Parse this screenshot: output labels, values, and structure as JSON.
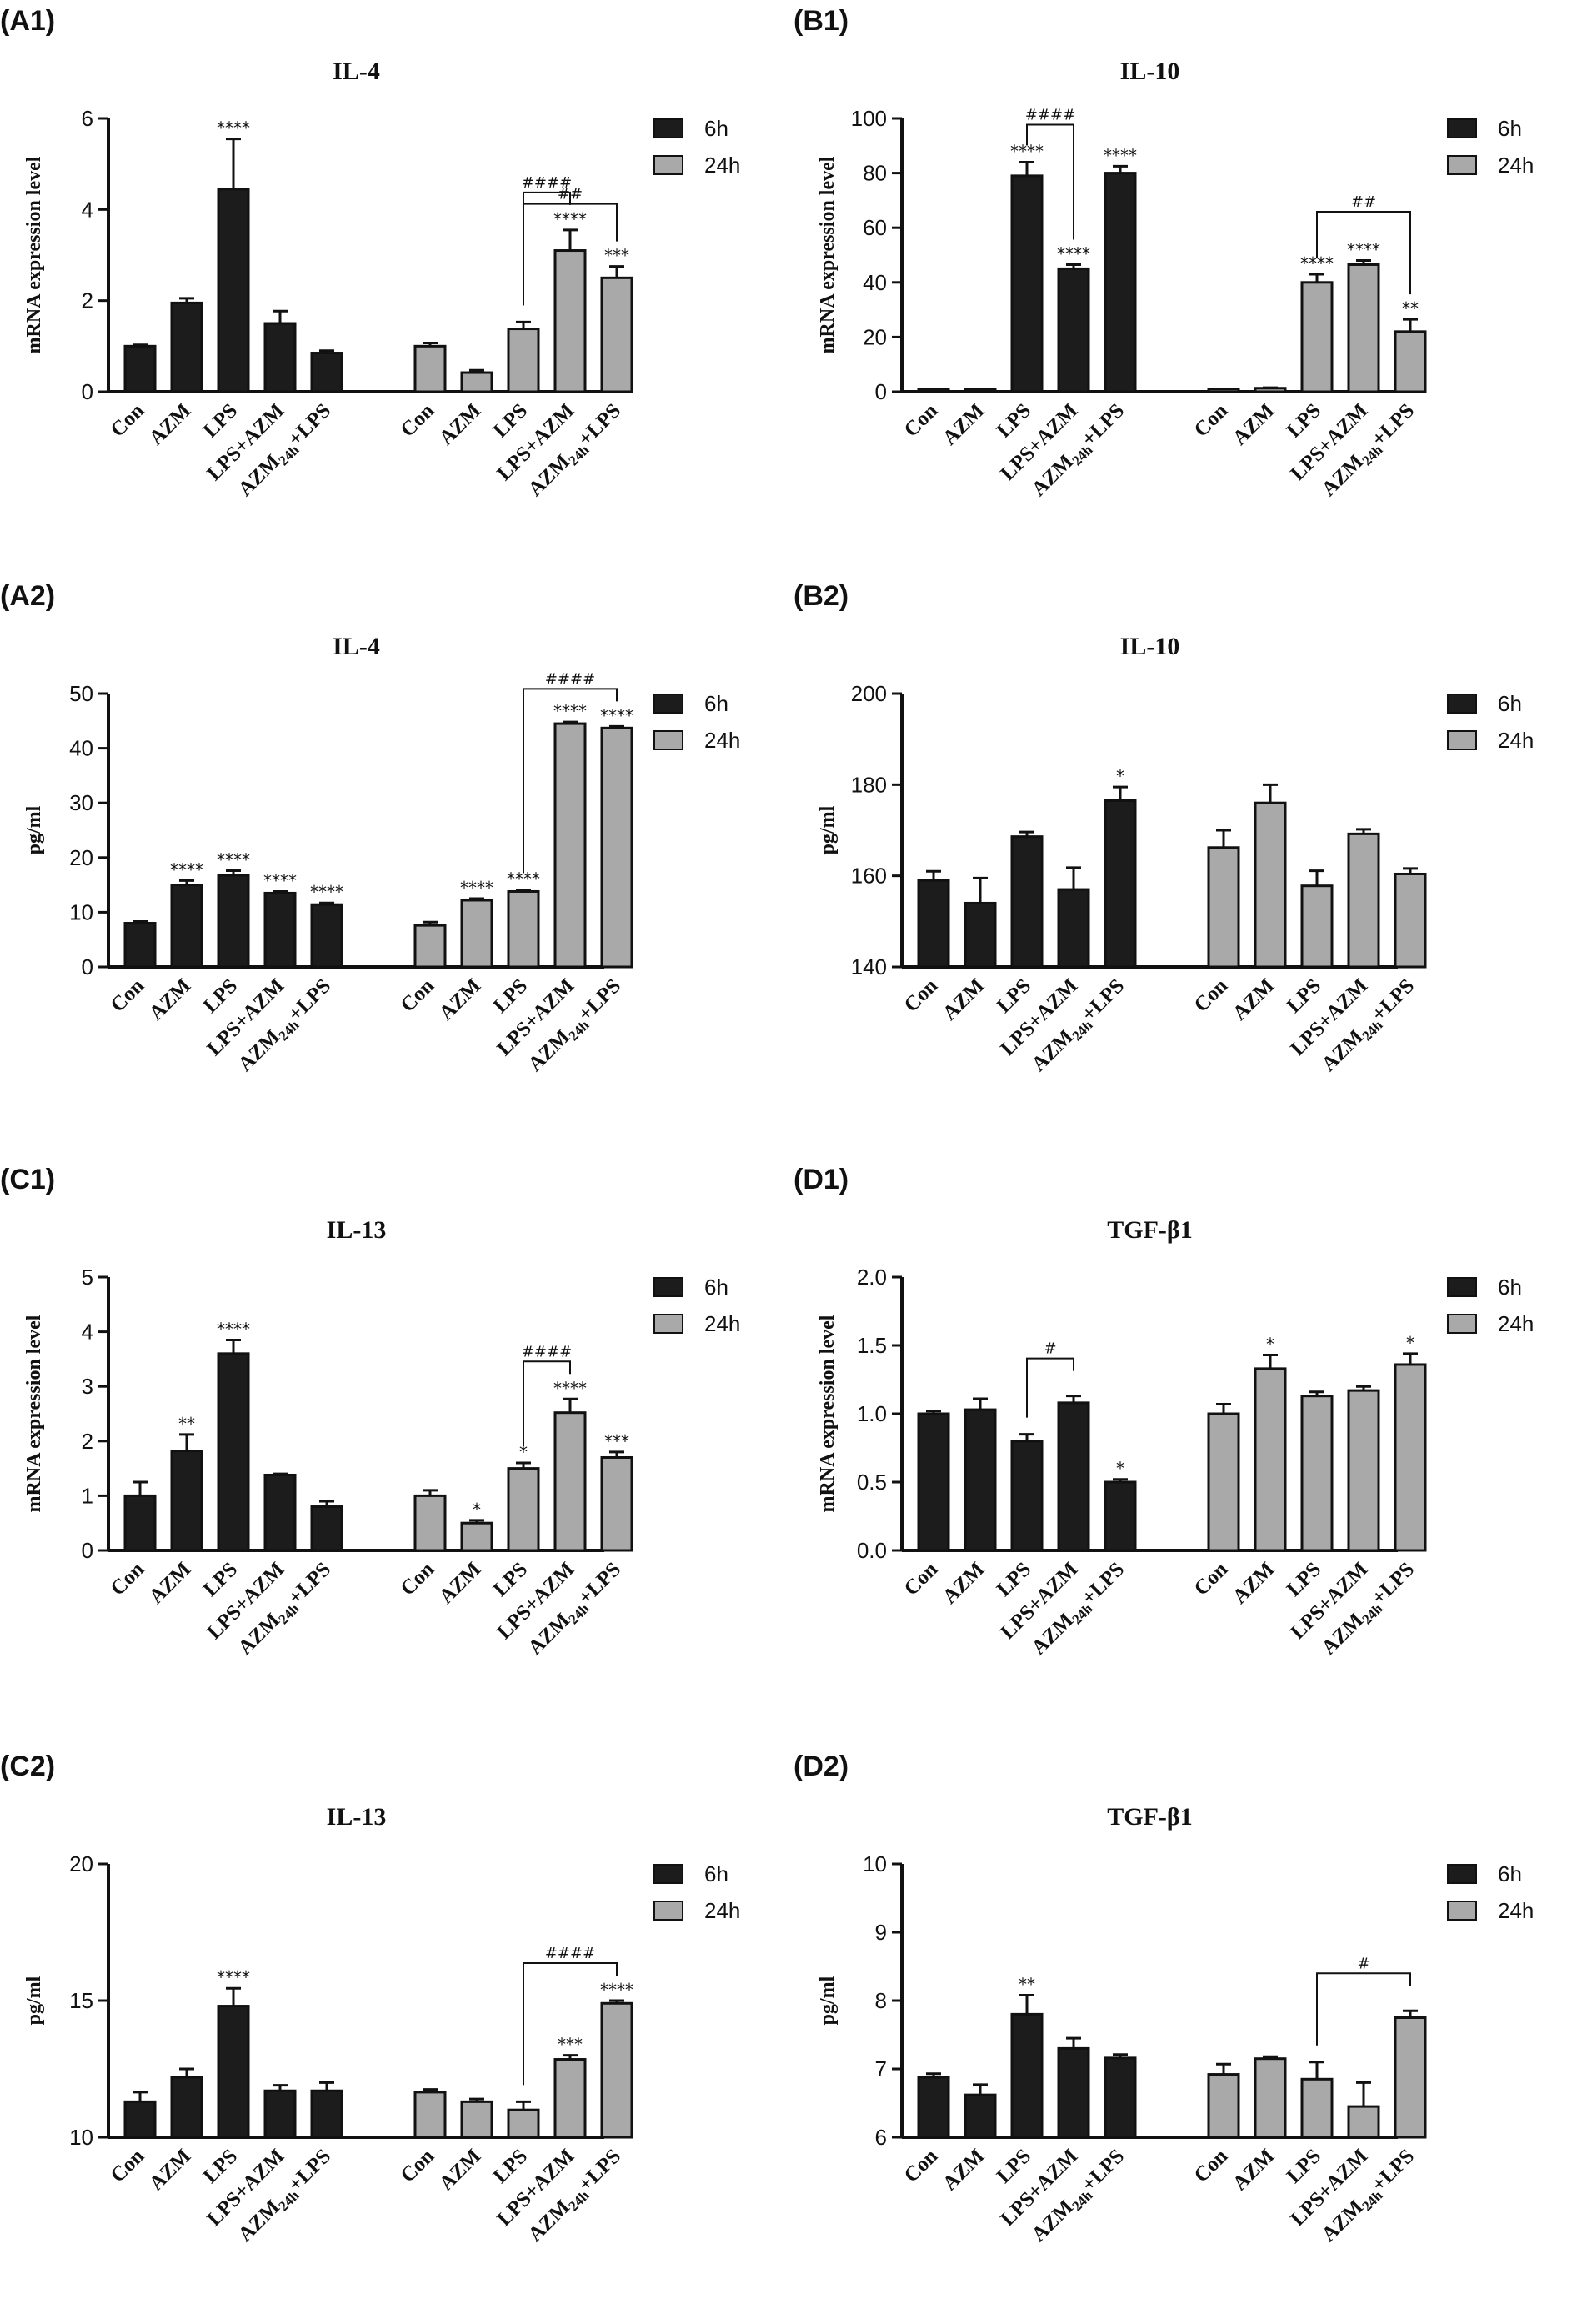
{
  "colors": {
    "series_6h": "#1c1c1c",
    "series_24h": "#a9a9a9",
    "axis": "#111111"
  },
  "legend": {
    "series": [
      "6h",
      "24h"
    ]
  },
  "categories": [
    "Con",
    "AZM",
    "LPS",
    "LPS+AZM",
    "AZM24h+LPS"
  ],
  "panels": [
    {
      "id": "A1",
      "label": "(A1)",
      "title": "IL-4",
      "ylabel": "mRNA expression level"
    },
    {
      "id": "B1",
      "label": "(B1)",
      "title": "IL-10",
      "ylabel": "mRNA expression level"
    },
    {
      "id": "A2",
      "label": "(A2)",
      "title": "IL-4",
      "ylabel": "pg/ml"
    },
    {
      "id": "B2",
      "label": "(B2)",
      "title": "IL-10",
      "ylabel": "pg/ml"
    },
    {
      "id": "C1",
      "label": "(C1)",
      "title": "IL-13",
      "ylabel": "mRNA expression level"
    },
    {
      "id": "D1",
      "label": "(D1)",
      "title": "TGF-β1",
      "ylabel": "mRNA expression level"
    },
    {
      "id": "C2",
      "label": "(C2)",
      "title": "IL-13",
      "ylabel": "pg/ml"
    },
    {
      "id": "D2",
      "label": "(D2)",
      "title": "TGF-β1",
      "ylabel": "pg/ml"
    }
  ],
  "chart_data": [
    {
      "panel": "A1",
      "type": "bar",
      "title": "IL-4",
      "ylabel": "mRNA expression level",
      "ylim": [
        0,
        6
      ],
      "yticks": [
        "0",
        "2",
        "4",
        "6"
      ],
      "legend_position": "top-right",
      "categories": [
        "Con",
        "AZM",
        "LPS",
        "LPS+AZM",
        "AZM24h+LPS"
      ],
      "series": [
        {
          "name": "6h",
          "values": [
            1.0,
            1.95,
            4.45,
            1.5,
            0.85
          ],
          "errors": [
            0.03,
            0.1,
            1.1,
            0.27,
            0.05
          ],
          "marks": [
            "",
            "",
            "****",
            "",
            ""
          ]
        },
        {
          "name": "24h",
          "values": [
            1.0,
            0.42,
            1.38,
            3.1,
            2.5
          ],
          "errors": [
            0.07,
            0.05,
            0.15,
            0.45,
            0.25
          ],
          "marks": [
            "",
            "",
            "",
            "****",
            "***"
          ]
        }
      ],
      "brackets": [
        {
          "series": "24h",
          "from": 2,
          "to": 3,
          "label": "####"
        },
        {
          "series": "24h",
          "from": 2,
          "to": 4,
          "label": "##"
        }
      ]
    },
    {
      "panel": "B1",
      "type": "bar",
      "title": "IL-10",
      "ylabel": "mRNA expression level",
      "ylim": [
        0,
        100
      ],
      "yticks": [
        "0",
        "20",
        "40",
        "60",
        "80",
        "100"
      ],
      "legend_position": "top-right",
      "categories": [
        "Con",
        "AZM",
        "LPS",
        "LPS+AZM",
        "AZM24h+LPS"
      ],
      "series": [
        {
          "name": "6h",
          "values": [
            1.0,
            1.0,
            79,
            45,
            80
          ],
          "errors": [
            0,
            0,
            5,
            1.5,
            2.5
          ],
          "marks": [
            "",
            "",
            "****",
            "****",
            "****"
          ]
        },
        {
          "name": "24h",
          "values": [
            1.0,
            1.3,
            40,
            46.5,
            22
          ],
          "errors": [
            0,
            0.2,
            3,
            1.5,
            4.5
          ],
          "marks": [
            "",
            "",
            "****",
            "****",
            "**"
          ]
        }
      ],
      "brackets": [
        {
          "series": "6h",
          "from": 2,
          "to": 3,
          "label": "####"
        },
        {
          "series": "24h",
          "from": 2,
          "to": 4,
          "label": "##"
        }
      ]
    },
    {
      "panel": "A2",
      "type": "bar",
      "title": "IL-4",
      "ylabel": "pg/ml",
      "ylim": [
        0,
        50
      ],
      "yticks": [
        "0",
        "10",
        "20",
        "30",
        "40",
        "50"
      ],
      "legend_position": "top-right",
      "categories": [
        "Con",
        "AZM",
        "LPS",
        "LPS+AZM",
        "AZM24h+LPS"
      ],
      "series": [
        {
          "name": "6h",
          "values": [
            8,
            15,
            16.8,
            13.5,
            11.4
          ],
          "errors": [
            0.3,
            0.8,
            0.8,
            0.3,
            0.3
          ],
          "marks": [
            "",
            "****",
            "****",
            "****",
            "****"
          ]
        },
        {
          "name": "24h",
          "values": [
            7.6,
            12.2,
            13.8,
            44.5,
            43.7
          ],
          "errors": [
            0.6,
            0.3,
            0.3,
            0.3,
            0.3
          ],
          "marks": [
            "",
            "****",
            "****",
            "****",
            "****"
          ]
        }
      ],
      "brackets": [
        {
          "series": "24h",
          "from": 2,
          "to": 4,
          "label": "####"
        }
      ]
    },
    {
      "panel": "B2",
      "type": "bar",
      "title": "IL-10",
      "ylabel": "pg/ml",
      "ylim": [
        140,
        200
      ],
      "yticks": [
        "140",
        "160",
        "180",
        "200"
      ],
      "legend_position": "top-right",
      "categories": [
        "Con",
        "AZM",
        "LPS",
        "LPS+AZM",
        "AZM24h+LPS"
      ],
      "series": [
        {
          "name": "6h",
          "values": [
            159,
            154,
            168.6,
            157,
            176.5
          ],
          "errors": [
            2,
            5.5,
            1,
            4.8,
            3
          ],
          "marks": [
            "",
            "",
            "",
            "",
            "*"
          ]
        },
        {
          "name": "24h",
          "values": [
            166.2,
            176,
            157.8,
            169.2,
            160.4
          ],
          "errors": [
            3.8,
            4,
            3.3,
            1,
            1.2
          ],
          "marks": [
            "",
            "",
            "",
            "",
            ""
          ]
        }
      ],
      "brackets": []
    },
    {
      "panel": "C1",
      "type": "bar",
      "title": "IL-13",
      "ylabel": "mRNA expression level",
      "ylim": [
        0,
        5
      ],
      "yticks": [
        "0",
        "1",
        "2",
        "3",
        "4",
        "5"
      ],
      "legend_position": "top-right",
      "categories": [
        "Con",
        "AZM",
        "LPS",
        "LPS+AZM",
        "AZM24h+LPS"
      ],
      "series": [
        {
          "name": "6h",
          "values": [
            1.0,
            1.82,
            3.6,
            1.38,
            0.8
          ],
          "errors": [
            0.25,
            0.3,
            0.25,
            0.02,
            0.1
          ],
          "marks": [
            "",
            "**",
            "****",
            "",
            ""
          ]
        },
        {
          "name": "24h",
          "values": [
            1.0,
            0.5,
            1.5,
            2.52,
            1.7
          ],
          "errors": [
            0.1,
            0.05,
            0.1,
            0.25,
            0.1
          ],
          "marks": [
            "",
            "*",
            "*",
            "****",
            "***"
          ]
        }
      ],
      "brackets": [
        {
          "series": "24h",
          "from": 2,
          "to": 3,
          "label": "####"
        }
      ]
    },
    {
      "panel": "D1",
      "type": "bar",
      "title": "TGF-β1",
      "ylabel": "mRNA expression level",
      "ylim": [
        0,
        2
      ],
      "yticks": [
        "0.0",
        "0.5",
        "1.0",
        "1.5",
        "2.0"
      ],
      "legend_position": "top-right",
      "categories": [
        "Con",
        "AZM",
        "LPS",
        "LPS+AZM",
        "AZM24h+LPS"
      ],
      "series": [
        {
          "name": "6h",
          "values": [
            1.0,
            1.03,
            0.8,
            1.08,
            0.5
          ],
          "errors": [
            0.02,
            0.08,
            0.05,
            0.05,
            0.02
          ],
          "marks": [
            "",
            "",
            "",
            "",
            "*"
          ]
        },
        {
          "name": "24h",
          "values": [
            1.0,
            1.33,
            1.13,
            1.17,
            1.36
          ],
          "errors": [
            0.07,
            0.1,
            0.03,
            0.03,
            0.08
          ],
          "marks": [
            "",
            "*",
            "",
            "",
            "*"
          ]
        }
      ],
      "brackets": [
        {
          "series": "6h",
          "from": 2,
          "to": 3,
          "label": "#"
        }
      ]
    },
    {
      "panel": "C2",
      "type": "bar",
      "title": "IL-13",
      "ylabel": "pg/ml",
      "ylim": [
        10,
        20
      ],
      "yticks": [
        "10",
        "15",
        "20"
      ],
      "legend_position": "top-right",
      "categories": [
        "Con",
        "AZM",
        "LPS",
        "LPS+AZM",
        "AZM24h+LPS"
      ],
      "series": [
        {
          "name": "6h",
          "values": [
            11.3,
            12.2,
            14.8,
            11.7,
            11.7
          ],
          "errors": [
            0.35,
            0.3,
            0.65,
            0.2,
            0.3
          ],
          "marks": [
            "",
            "",
            "****",
            "",
            ""
          ]
        },
        {
          "name": "24h",
          "values": [
            11.65,
            11.3,
            11.0,
            12.85,
            14.9
          ],
          "errors": [
            0.1,
            0.1,
            0.3,
            0.15,
            0.1
          ],
          "marks": [
            "",
            "",
            "",
            "***",
            "****"
          ]
        }
      ],
      "brackets": [
        {
          "series": "24h",
          "from": 2,
          "to": 4,
          "label": "####"
        }
      ]
    },
    {
      "panel": "D2",
      "type": "bar",
      "title": "TGF-β1",
      "ylabel": "pg/ml",
      "ylim": [
        6,
        10
      ],
      "yticks": [
        "6",
        "7",
        "8",
        "9",
        "10"
      ],
      "legend_position": "top-right",
      "categories": [
        "Con",
        "AZM",
        "LPS",
        "LPS+AZM",
        "AZM24h+LPS"
      ],
      "series": [
        {
          "name": "6h",
          "values": [
            6.88,
            6.62,
            7.8,
            7.3,
            7.16
          ],
          "errors": [
            0.05,
            0.15,
            0.28,
            0.15,
            0.05
          ],
          "marks": [
            "",
            "",
            "**",
            "",
            ""
          ]
        },
        {
          "name": "24h",
          "values": [
            6.92,
            7.15,
            6.85,
            6.45,
            7.75
          ],
          "errors": [
            0.15,
            0.03,
            0.25,
            0.35,
            0.1
          ],
          "marks": [
            "",
            "",
            "",
            "",
            ""
          ]
        }
      ],
      "brackets": [
        {
          "series": "24h",
          "from": 2,
          "to": 4,
          "label": "#"
        }
      ]
    }
  ]
}
